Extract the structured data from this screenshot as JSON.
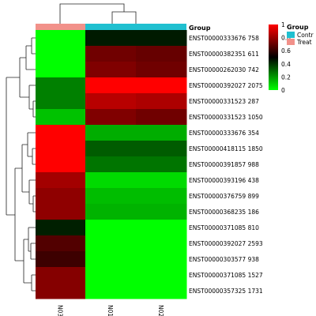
{
  "chart_data": {
    "type": "heatmap",
    "samples": [
      "N03",
      "N01",
      "N02"
    ],
    "sample_group": [
      "Treat",
      "Control",
      "Control"
    ],
    "annotation_title": "Group",
    "legend_title": "Group",
    "groups": [
      {
        "name": "Control",
        "label": "Contr",
        "color": "#20c0d0"
      },
      {
        "name": "Treat",
        "label": "Treat",
        "color": "#f2918a"
      }
    ],
    "colorbar": {
      "ticks": [
        0,
        0.2,
        0.4,
        0.6,
        0.8,
        1
      ],
      "low": "#00ff00",
      "mid": "#000000",
      "high": "#ff0000"
    },
    "rows": [
      {
        "gene": "ENST00000333676 758",
        "values": [
          0.0,
          0.45,
          0.45
        ]
      },
      {
        "gene": "ENST00000382351 611",
        "values": [
          0.0,
          0.72,
          0.7
        ]
      },
      {
        "gene": "ENST00000262030 742",
        "values": [
          0.0,
          0.75,
          0.72
        ]
      },
      {
        "gene": "ENST00000392027 2075",
        "values": [
          0.25,
          1.0,
          1.0
        ]
      },
      {
        "gene": "ENST00000331523 287",
        "values": [
          0.25,
          0.86,
          0.84
        ]
      },
      {
        "gene": "ENST00000331523 1050",
        "values": [
          0.12,
          0.75,
          0.72
        ]
      },
      {
        "gene": "ENST00000333676 354",
        "values": [
          1.0,
          0.16,
          0.16
        ]
      },
      {
        "gene": "ENST00000418115 1850",
        "values": [
          1.0,
          0.32,
          0.32
        ]
      },
      {
        "gene": "ENST00000391857 988",
        "values": [
          1.0,
          0.27,
          0.27
        ]
      },
      {
        "gene": "ENST00000393196 438",
        "values": [
          0.82,
          0.07,
          0.07
        ]
      },
      {
        "gene": "ENST00000376759 899",
        "values": [
          0.78,
          0.13,
          0.13
        ]
      },
      {
        "gene": "ENST00000368235 186",
        "values": [
          0.78,
          0.15,
          0.15
        ]
      },
      {
        "gene": "ENST00000371085 810",
        "values": [
          0.44,
          0.0,
          0.0
        ]
      },
      {
        "gene": "ENST00000392027 2593",
        "values": [
          0.66,
          0.0,
          0.0
        ]
      },
      {
        "gene": "ENST00000303577 938",
        "values": [
          0.62,
          0.0,
          0.0
        ]
      },
      {
        "gene": "ENST00000371085 1527",
        "values": [
          0.76,
          0.0,
          0.0
        ]
      },
      {
        "gene": "ENST00000357325 1731",
        "values": [
          0.76,
          0.0,
          0.0
        ]
      }
    ]
  }
}
